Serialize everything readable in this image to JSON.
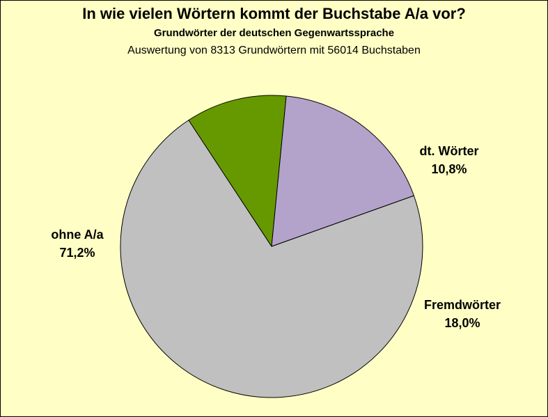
{
  "chart_data": {
    "type": "pie",
    "title": "In wie vielen Wörtern kommt der Buchstabe A/a vor?",
    "subtitle": "Grundwörter der deutschen Gegenwartssprache",
    "note": "Auswertung von 8313 Grundwörtern mit 56014 Buchstaben",
    "slices": [
      {
        "label": "dt. Wörter",
        "value": 10.8,
        "value_label": "10,8%",
        "color": "#669900"
      },
      {
        "label": "Fremdwörter",
        "value": 18.0,
        "value_label": "18,0%",
        "color": "#B3A3CA"
      },
      {
        "label": "ohne A/a",
        "value": 71.2,
        "value_label": "71,2%",
        "color": "#C0C0C0"
      }
    ],
    "background_color": "#FFFFC5"
  }
}
